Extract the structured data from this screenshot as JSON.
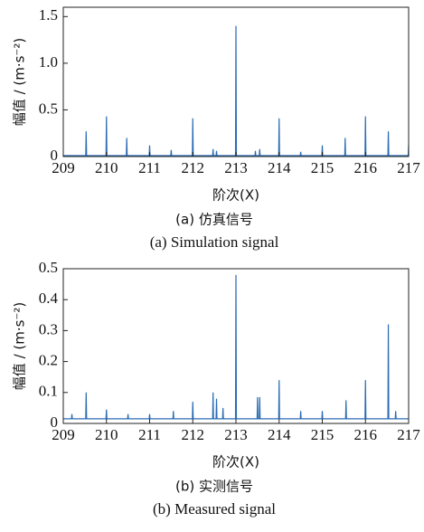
{
  "chart_data": [
    {
      "type": "line",
      "title": "(a) 仿真信号",
      "subtitle": "(a) Simulation signal",
      "xlabel": "阶次(X)",
      "ylabel": "幅值 / (m·s⁻²)",
      "xlim": [
        209,
        217
      ],
      "xticks": [
        209,
        210,
        211,
        212,
        213,
        214,
        215,
        216,
        217
      ],
      "ylim": [
        0,
        1.6
      ],
      "yticks": [
        0,
        0.5,
        {
          "value": 1,
          "label": "1.0"
        },
        1.5
      ],
      "x": [
        209,
        209.52,
        209.53,
        209.54,
        209.99,
        210,
        210.01,
        210.46,
        210.47,
        210.48,
        210.99,
        211,
        211.01,
        211.49,
        211.5,
        211.51,
        211.99,
        212,
        212.01,
        212.46,
        212.47,
        212.48,
        212.54,
        212.55,
        212.56,
        212.99,
        213,
        213.01,
        213.44,
        213.45,
        213.46,
        213.54,
        213.55,
        213.56,
        213.99,
        214,
        214.01,
        214.49,
        214.5,
        214.51,
        214.99,
        215,
        215.01,
        215.52,
        215.53,
        215.54,
        215.99,
        216,
        216.01,
        216.52,
        216.53,
        216.54,
        216.99,
        217
      ],
      "series": [
        {
          "color": "#2b6cb3",
          "values": [
            0.01,
            0.01,
            0.27,
            0.01,
            0.01,
            0.43,
            0.01,
            0.01,
            0.2,
            0.01,
            0.01,
            0.12,
            0.01,
            0.01,
            0.07,
            0.01,
            0.01,
            0.41,
            0.01,
            0.01,
            0.08,
            0.01,
            0.01,
            0.06,
            0.01,
            0.01,
            1.4,
            0.01,
            0.01,
            0.06,
            0.01,
            0.01,
            0.08,
            0.01,
            0.01,
            0.41,
            0.01,
            0.01,
            0.05,
            0.01,
            0.01,
            0.12,
            0.01,
            0.01,
            0.2,
            0.01,
            0.01,
            0.43,
            0.01,
            0.01,
            0.27,
            0.01,
            0.01,
            0.12
          ]
        }
      ]
    },
    {
      "type": "line",
      "title": "(b) 实测信号",
      "subtitle": "(b) Measured signal",
      "xlabel": "阶次(X)",
      "ylabel": "幅值 / (m·s⁻²)",
      "xlim": [
        209,
        217
      ],
      "xticks": [
        209,
        210,
        211,
        212,
        213,
        214,
        215,
        216,
        217
      ],
      "ylim": [
        0,
        0.5
      ],
      "yticks": [
        0,
        0.1,
        0.2,
        0.3,
        0.4,
        0.5
      ],
      "x": [
        209,
        209.19,
        209.2,
        209.21,
        209.52,
        209.53,
        209.54,
        209.99,
        210,
        210.01,
        210.49,
        210.5,
        210.51,
        210.99,
        211,
        211.01,
        211.54,
        211.55,
        211.56,
        211.99,
        212,
        212.01,
        212.46,
        212.47,
        212.48,
        212.54,
        212.55,
        212.56,
        212.69,
        212.7,
        212.71,
        212.99,
        213,
        213.01,
        213.49,
        213.5,
        213.51,
        213.54,
        213.55,
        213.56,
        213.99,
        214,
        214.01,
        214.49,
        214.5,
        214.51,
        214.99,
        215,
        215.01,
        215.54,
        215.55,
        215.56,
        215.99,
        216,
        216.01,
        216.52,
        216.53,
        216.54,
        216.69,
        216.7,
        216.71,
        217
      ],
      "series": [
        {
          "color": "#2b6cb3",
          "values": [
            0.015,
            0.015,
            0.03,
            0.015,
            0.015,
            0.1,
            0.015,
            0.015,
            0.045,
            0.015,
            0.015,
            0.03,
            0.015,
            0.015,
            0.03,
            0.015,
            0.015,
            0.04,
            0.015,
            0.015,
            0.07,
            0.015,
            0.015,
            0.1,
            0.015,
            0.015,
            0.08,
            0.015,
            0.015,
            0.05,
            0.015,
            0.015,
            0.48,
            0.015,
            0.015,
            0.085,
            0.015,
            0.015,
            0.085,
            0.015,
            0.015,
            0.14,
            0.015,
            0.015,
            0.04,
            0.015,
            0.015,
            0.04,
            0.015,
            0.015,
            0.075,
            0.015,
            0.015,
            0.14,
            0.015,
            0.015,
            0.32,
            0.015,
            0.015,
            0.04,
            0.015,
            0.015
          ]
        }
      ]
    }
  ]
}
